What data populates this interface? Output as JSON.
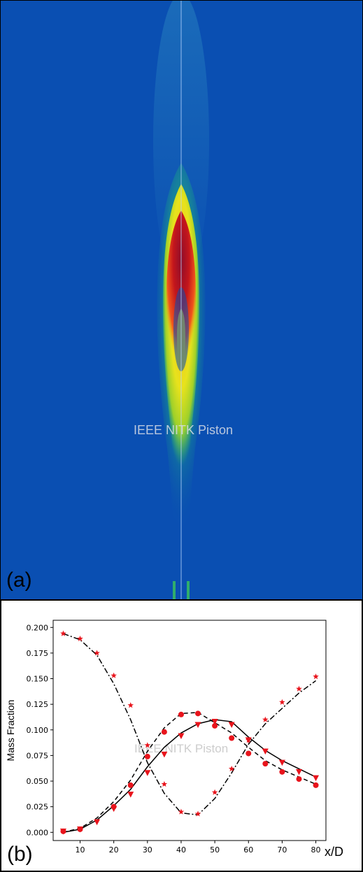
{
  "panel_a": {
    "label": "(a)",
    "watermark": "IEEE NITK Piston",
    "colormap": "jet",
    "background_color": "#0a4fb2"
  },
  "panel_b": {
    "label": "(b)",
    "watermark": "IEEE NITK Piston"
  },
  "chart_data": {
    "type": "line",
    "title": "",
    "xlabel": "x/D",
    "ylabel": "Mass Fraction",
    "xlim": [
      2,
      83
    ],
    "ylim": [
      -0.008,
      0.207
    ],
    "xticks": [
      10,
      20,
      30,
      40,
      50,
      60,
      70,
      80
    ],
    "yticks": [
      0.0,
      0.025,
      0.05,
      0.075,
      0.1,
      0.125,
      0.15,
      0.175,
      0.2
    ],
    "ytick_labels": [
      "0.000",
      "0.025",
      "0.050",
      "0.075",
      "0.100",
      "0.125",
      "0.150",
      "0.175",
      "0.200"
    ],
    "grid": false,
    "legend": "none",
    "series": [
      {
        "style": "solid line",
        "color": "#000000",
        "x": [
          5,
          10,
          15,
          20,
          25,
          30,
          35,
          40,
          45,
          50,
          55,
          60,
          65,
          70,
          75,
          80
        ],
        "y": [
          0.0,
          0.003,
          0.012,
          0.026,
          0.042,
          0.064,
          0.083,
          0.097,
          0.106,
          0.11,
          0.108,
          0.093,
          0.08,
          0.07,
          0.062,
          0.054
        ]
      },
      {
        "style": "dashed line",
        "color": "#000000",
        "x": [
          5,
          10,
          15,
          20,
          25,
          30,
          35,
          40,
          45,
          50,
          55,
          60,
          65,
          70,
          75,
          80
        ],
        "y": [
          0.0,
          0.004,
          0.014,
          0.03,
          0.051,
          0.079,
          0.102,
          0.116,
          0.117,
          0.107,
          0.097,
          0.083,
          0.07,
          0.061,
          0.054,
          0.047
        ]
      },
      {
        "style": "dash-dot line",
        "color": "#000000",
        "x": [
          5,
          10,
          15,
          20,
          25,
          30,
          35,
          40,
          45,
          50,
          55,
          60,
          65,
          70,
          75,
          80
        ],
        "y": [
          0.194,
          0.188,
          0.173,
          0.145,
          0.11,
          0.068,
          0.038,
          0.019,
          0.017,
          0.033,
          0.058,
          0.086,
          0.106,
          0.121,
          0.136,
          0.148
        ]
      },
      {
        "style": "markers",
        "marker": "circle",
        "color": "#e8141c",
        "x": [
          5,
          10,
          20,
          25,
          30,
          35,
          40,
          45,
          50,
          55,
          60,
          65,
          70,
          75,
          80
        ],
        "y": [
          0.001,
          0.003,
          0.025,
          0.046,
          0.074,
          0.098,
          0.115,
          0.116,
          0.104,
          0.092,
          0.077,
          0.067,
          0.059,
          0.052,
          0.046
        ]
      },
      {
        "style": "markers",
        "marker": "triangle-down",
        "color": "#e8141c",
        "x": [
          5,
          10,
          15,
          20,
          25,
          30,
          35,
          40,
          45,
          50,
          55,
          60,
          65,
          70,
          75,
          80
        ],
        "y": [
          0.001,
          0.003,
          0.01,
          0.023,
          0.037,
          0.058,
          0.076,
          0.094,
          0.105,
          0.108,
          0.105,
          0.09,
          0.079,
          0.068,
          0.059,
          0.053
        ]
      },
      {
        "style": "markers",
        "marker": "star",
        "color": "#e8141c",
        "x": [
          5,
          10,
          15,
          20,
          25,
          30,
          35,
          40,
          45,
          50,
          55,
          60,
          65,
          70,
          75,
          80
        ],
        "y": [
          0.194,
          0.189,
          0.175,
          0.153,
          0.124,
          0.085,
          0.047,
          0.02,
          0.018,
          0.039,
          0.062,
          0.09,
          0.11,
          0.127,
          0.14,
          0.152
        ]
      }
    ]
  }
}
